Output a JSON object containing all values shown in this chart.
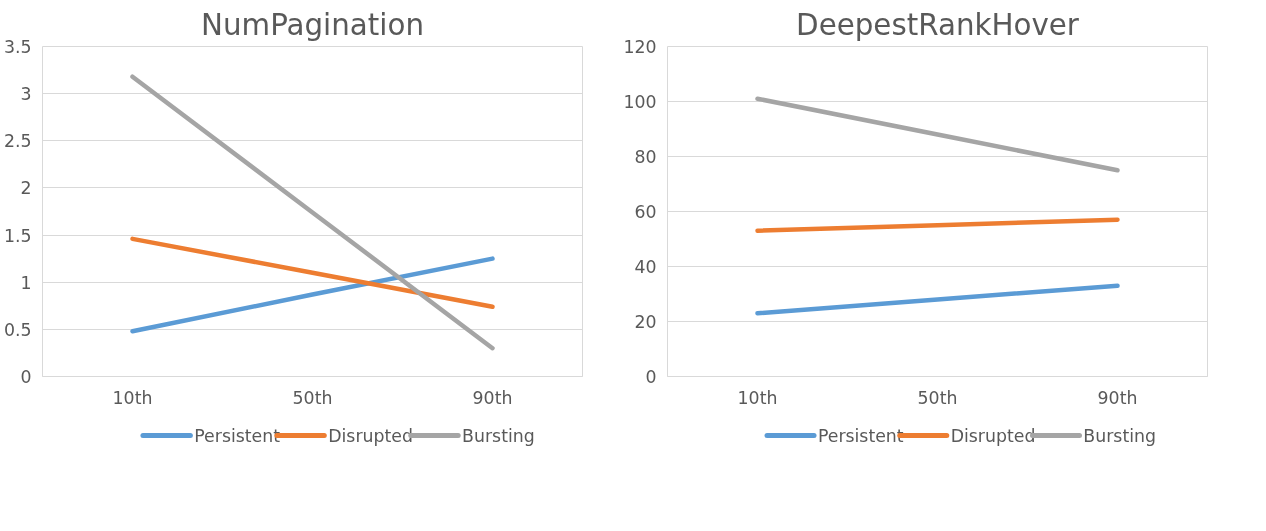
{
  "chart_data": [
    {
      "type": "line",
      "title": "NumPagination",
      "categories": [
        "10th",
        "50th",
        "90th"
      ],
      "ylim": [
        0,
        3.5
      ],
      "yticks": [
        0,
        0.5,
        1,
        1.5,
        2,
        2.5,
        3,
        3.5
      ],
      "grid": "y",
      "legend": "bottom",
      "line_style": "solid",
      "marker": "none",
      "series": [
        {
          "name": "Persistent",
          "color": "#5b9bd5",
          "values": [
            0.48,
            0.87,
            1.25
          ]
        },
        {
          "name": "Disrupted",
          "color": "#ed7d31",
          "values": [
            1.46,
            1.1,
            0.74
          ]
        },
        {
          "name": "Bursting",
          "color": "#a5a5a5",
          "values": [
            3.18,
            1.74,
            0.3
          ]
        }
      ]
    },
    {
      "type": "line",
      "title": "DeepestRankHover",
      "categories": [
        "10th",
        "50th",
        "90th"
      ],
      "ylim": [
        0,
        120
      ],
      "yticks": [
        0,
        20,
        40,
        60,
        80,
        100,
        120
      ],
      "grid": "y",
      "legend": "bottom",
      "line_style": "solid",
      "marker": "none",
      "series": [
        {
          "name": "Persistent",
          "color": "#5b9bd5",
          "values": [
            23,
            28,
            33
          ]
        },
        {
          "name": "Disrupted",
          "color": "#ed7d31",
          "values": [
            53,
            55,
            57
          ]
        },
        {
          "name": "Bursting",
          "color": "#a5a5a5",
          "values": [
            101,
            88,
            75
          ]
        }
      ]
    }
  ]
}
